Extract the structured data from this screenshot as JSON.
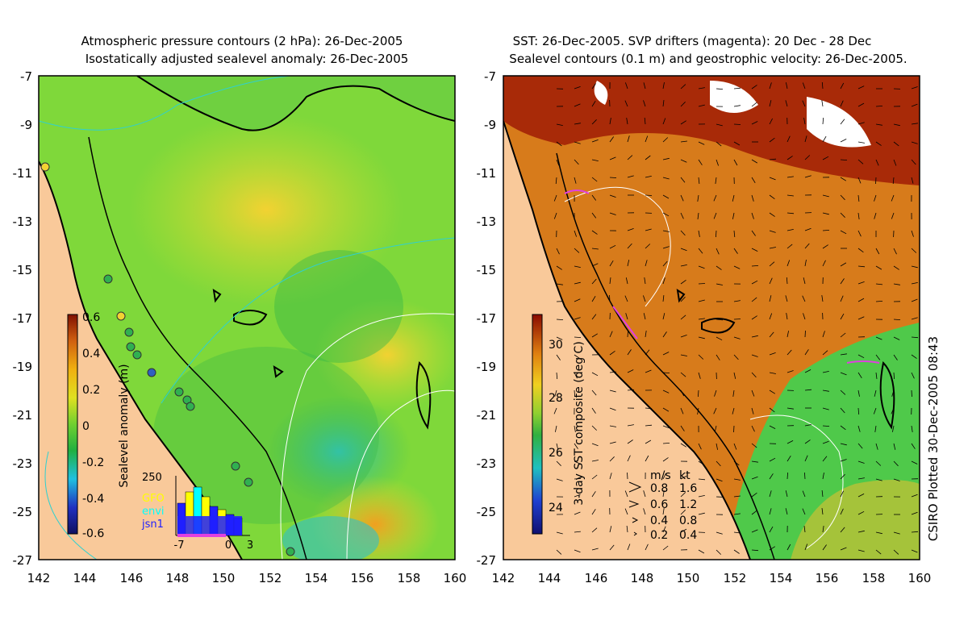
{
  "left_panel": {
    "title_line1": "Atmospheric pressure contours (2 hPa): 26-Dec-2005",
    "title_line2": "Isostatically adjusted sealevel anomaly: 26-Dec-2005",
    "y_ticks": [
      "-7",
      "-9",
      "-11",
      "-13",
      "-15",
      "-17",
      "-19",
      "-21",
      "-23",
      "-25",
      "-27"
    ],
    "x_ticks": [
      "142",
      "144",
      "146",
      "148",
      "150",
      "152",
      "154",
      "156",
      "158",
      "160"
    ],
    "colorbar": {
      "label": "Sealevel anomaly (m)",
      "ticks": [
        "0.6",
        "0.4",
        "0.2",
        "0",
        "-0.2",
        "-0.4",
        "-0.6"
      ]
    },
    "inset": {
      "top_label": "250",
      "x_ticks": [
        "-7",
        "0",
        "3"
      ],
      "legend": [
        {
          "name": "GFO",
          "color": "#ffff00"
        },
        {
          "name": "envi",
          "color": "#00ffff"
        },
        {
          "name": "jsn1",
          "color": "#2020ff"
        }
      ]
    }
  },
  "right_panel": {
    "title_line1": "SST: 26-Dec-2005. SVP drifters (magenta): 20 Dec - 28 Dec",
    "title_line2": "Sealevel contours (0.1 m) and geostrophic velocity: 26-Dec-2005.",
    "y_ticks": [
      "-7",
      "-9",
      "-11",
      "-13",
      "-15",
      "-17",
      "-19",
      "-21",
      "-23",
      "-25",
      "-27"
    ],
    "x_ticks": [
      "142",
      "144",
      "146",
      "148",
      "150",
      "152",
      "154",
      "156",
      "158",
      "160"
    ],
    "colorbar": {
      "label": "3-day SST composite (deg C)",
      "ticks": [
        "30",
        "28",
        "26",
        "24"
      ]
    },
    "velocity_legend": {
      "header_ms": "m/s",
      "header_kt": "kt",
      "rows": [
        {
          "ms": "0.8",
          "kt": "1.6"
        },
        {
          "ms": "0.6",
          "kt": "1.2"
        },
        {
          "ms": "0.4",
          "kt": "0.8"
        },
        {
          "ms": "0.2",
          "kt": "0.4"
        }
      ]
    }
  },
  "footer_credit": "CSIRO Plotted 30-Dec-2005 08:43",
  "colors": {
    "land": "#f9c99a",
    "sla_mid": "#7fd83a",
    "sst_warm": "#d77b1b",
    "sst_cool": "#4fc94a",
    "coast": "#000000",
    "pressure_contour": "#2fd0d0",
    "drifter": "#e040e0"
  }
}
